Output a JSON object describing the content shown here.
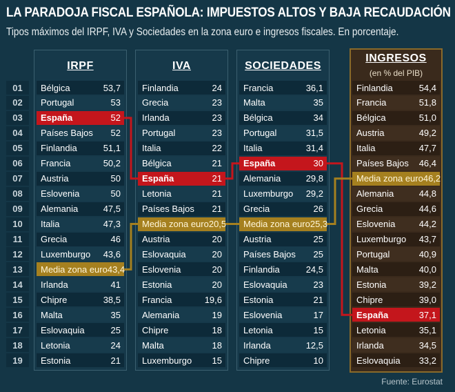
{
  "title": "LA PARADOJA FISCAL ESPAÑOLA: IMPUESTOS ALTOS Y BAJA RECAUDACIÓN",
  "subtitle": "Tipos máximos del IRPF, IVA y Sociedades en la zona euro e ingresos fiscales. En porcentaje.",
  "source": "Fuente: Eurostat",
  "colors": {
    "background": "#143646",
    "spain": "#c4161c",
    "euro_average": "#a5801f",
    "revenue_panel": "#3a2a1c"
  },
  "chart_data": {
    "type": "table",
    "ranks": [
      "01",
      "02",
      "03",
      "04",
      "05",
      "06",
      "07",
      "08",
      "09",
      "10",
      "11",
      "12",
      "13",
      "14",
      "15",
      "16",
      "17",
      "18",
      "19"
    ],
    "columns": [
      {
        "header": "IRPF",
        "rows": [
          [
            "Bélgica",
            "53,7"
          ],
          [
            "Portugal",
            "53"
          ],
          [
            "España",
            "52"
          ],
          [
            "Países Bajos",
            "52"
          ],
          [
            "Finlandia",
            "51,1"
          ],
          [
            "Francia",
            "50,2"
          ],
          [
            "Austria",
            "50"
          ],
          [
            "Eslovenia",
            "50"
          ],
          [
            "Alemania",
            "47,5"
          ],
          [
            "Italia",
            "47,3"
          ],
          [
            "Grecia",
            "46"
          ],
          [
            "Luxemburgo",
            "43,6"
          ],
          [
            "Media zona euro",
            "43,4"
          ],
          [
            "Irlanda",
            "41"
          ],
          [
            "Chipre",
            "38,5"
          ],
          [
            "Malta",
            "35"
          ],
          [
            "Eslovaquia",
            "25"
          ],
          [
            "Letonia",
            "24"
          ],
          [
            "Estonia",
            "21"
          ]
        ]
      },
      {
        "header": "IVA",
        "rows": [
          [
            "Finlandia",
            "24"
          ],
          [
            "Grecia",
            "23"
          ],
          [
            "Irlanda",
            "23"
          ],
          [
            "Portugal",
            "23"
          ],
          [
            "Italia",
            "22"
          ],
          [
            "Bélgica",
            "21"
          ],
          [
            "España",
            "21"
          ],
          [
            "Letonia",
            "21"
          ],
          [
            "Países Bajos",
            "21"
          ],
          [
            "Media zona euro",
            "20,5"
          ],
          [
            "Austria",
            "20"
          ],
          [
            "Eslovaquia",
            "20"
          ],
          [
            "Eslovenia",
            "20"
          ],
          [
            "Estonia",
            "20"
          ],
          [
            "Francia",
            "19,6"
          ],
          [
            "Alemania",
            "19"
          ],
          [
            "Chipre",
            "18"
          ],
          [
            "Malta",
            "18"
          ],
          [
            "Luxemburgo",
            "15"
          ]
        ]
      },
      {
        "header": "SOCIEDADES",
        "rows": [
          [
            "Francia",
            "36,1"
          ],
          [
            "Malta",
            "35"
          ],
          [
            "Bélgica",
            "34"
          ],
          [
            "Portugal",
            "31,5"
          ],
          [
            "Italia",
            "31,4"
          ],
          [
            "España",
            "30"
          ],
          [
            "Alemania",
            "29,8"
          ],
          [
            "Luxemburgo",
            "29,2"
          ],
          [
            "Grecia",
            "26"
          ],
          [
            "Media zona euro",
            "25,3"
          ],
          [
            "Austria",
            "25"
          ],
          [
            "Países Bajos",
            "25"
          ],
          [
            "Finlandia",
            "24,5"
          ],
          [
            "Eslovaquia",
            "23"
          ],
          [
            "Estonia",
            "21"
          ],
          [
            "Eslovenia",
            "17"
          ],
          [
            "Letonia",
            "15"
          ],
          [
            "Irlanda",
            "12,5"
          ],
          [
            "Chipre",
            "10"
          ]
        ]
      },
      {
        "header": "INGRESOS",
        "subheader": "(en % del PIB)",
        "rows": [
          [
            "Finlandia",
            "54,4"
          ],
          [
            "Francia",
            "51,8"
          ],
          [
            "Bélgica",
            "51,0"
          ],
          [
            "Austria",
            "49,2"
          ],
          [
            "Italia",
            "47,7"
          ],
          [
            "Países Bajos",
            "46,4"
          ],
          [
            "Media zona euro",
            "46,2"
          ],
          [
            "Alemania",
            "44,8"
          ],
          [
            "Grecia",
            "44,6"
          ],
          [
            "Eslovenia",
            "44,2"
          ],
          [
            "Luxemburgo",
            "43,7"
          ],
          [
            "Portugal",
            "40,9"
          ],
          [
            "Malta",
            "40,0"
          ],
          [
            "Estonia",
            "39,2"
          ],
          [
            "Chipre",
            "39,0"
          ],
          [
            "España",
            "37,1"
          ],
          [
            "Letonia",
            "35,1"
          ],
          [
            "Irlanda",
            "34,5"
          ],
          [
            "Eslovaquia",
            "33,2"
          ]
        ]
      }
    ],
    "highlight": {
      "spain": "España",
      "average": "Media zona euro"
    }
  }
}
